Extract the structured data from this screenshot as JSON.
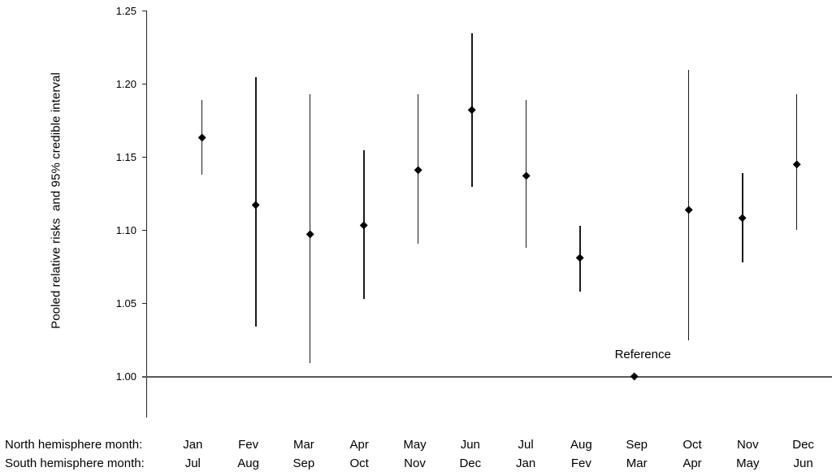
{
  "colors": {
    "background": "#ffffff",
    "text": "#000000",
    "marker": "#000000",
    "interval_line": "#1a1a1a",
    "axis_line": "#262626",
    "reference_line": "#595959"
  },
  "chart_data": {
    "type": "scatter",
    "subtype": "forest-plot-point-estimates-with-credible-intervals",
    "title": "",
    "ylabel": "Pooled relative risks  and 95% credible interval",
    "xlabel": "",
    "ylim": [
      0.972,
      1.25
    ],
    "grid": false,
    "legend": false,
    "yticks": {
      "values": [
        1.0,
        1.05,
        1.1,
        1.15,
        1.2,
        1.25
      ],
      "labels": [
        "1.00",
        "1.05",
        "1.10",
        "1.15",
        "1.20",
        "1.25"
      ]
    },
    "reference_line_y": 1.0,
    "annotation": {
      "text": "Reference",
      "point_index": 8
    },
    "x_axis": {
      "north_label": "North hemisphere month:",
      "south_label": "South hemisphere month:"
    },
    "points": [
      {
        "north": "Jan",
        "south": "Jul",
        "value": 1.163,
        "lower": 1.138,
        "upper": 1.189,
        "reference": false
      },
      {
        "north": "Fev",
        "south": "Aug",
        "value": 1.117,
        "lower": 1.034,
        "upper": 1.205,
        "reference": false
      },
      {
        "north": "Mar",
        "south": "Sep",
        "value": 1.097,
        "lower": 1.009,
        "upper": 1.193,
        "reference": false
      },
      {
        "north": "Apr",
        "south": "Oct",
        "value": 1.103,
        "lower": 1.053,
        "upper": 1.155,
        "reference": false
      },
      {
        "north": "May",
        "south": "Nov",
        "value": 1.141,
        "lower": 1.091,
        "upper": 1.193,
        "reference": false
      },
      {
        "north": "Jun",
        "south": "Dec",
        "value": 1.182,
        "lower": 1.13,
        "upper": 1.235,
        "reference": false
      },
      {
        "north": "Jul",
        "south": "Jan",
        "value": 1.137,
        "lower": 1.088,
        "upper": 1.189,
        "reference": false
      },
      {
        "north": "Aug",
        "south": "Fev",
        "value": 1.081,
        "lower": 1.058,
        "upper": 1.103,
        "reference": false
      },
      {
        "north": "Sep",
        "south": "Mar",
        "value": 1.0,
        "lower": null,
        "upper": null,
        "reference": true
      },
      {
        "north": "Oct",
        "south": "Apr",
        "value": 1.114,
        "lower": 1.025,
        "upper": 1.21,
        "reference": false
      },
      {
        "north": "Nov",
        "south": "May",
        "value": 1.108,
        "lower": 1.078,
        "upper": 1.139,
        "reference": false
      },
      {
        "north": "Dec",
        "south": "Jun",
        "value": 1.145,
        "lower": 1.1,
        "upper": 1.193,
        "reference": false
      }
    ]
  }
}
